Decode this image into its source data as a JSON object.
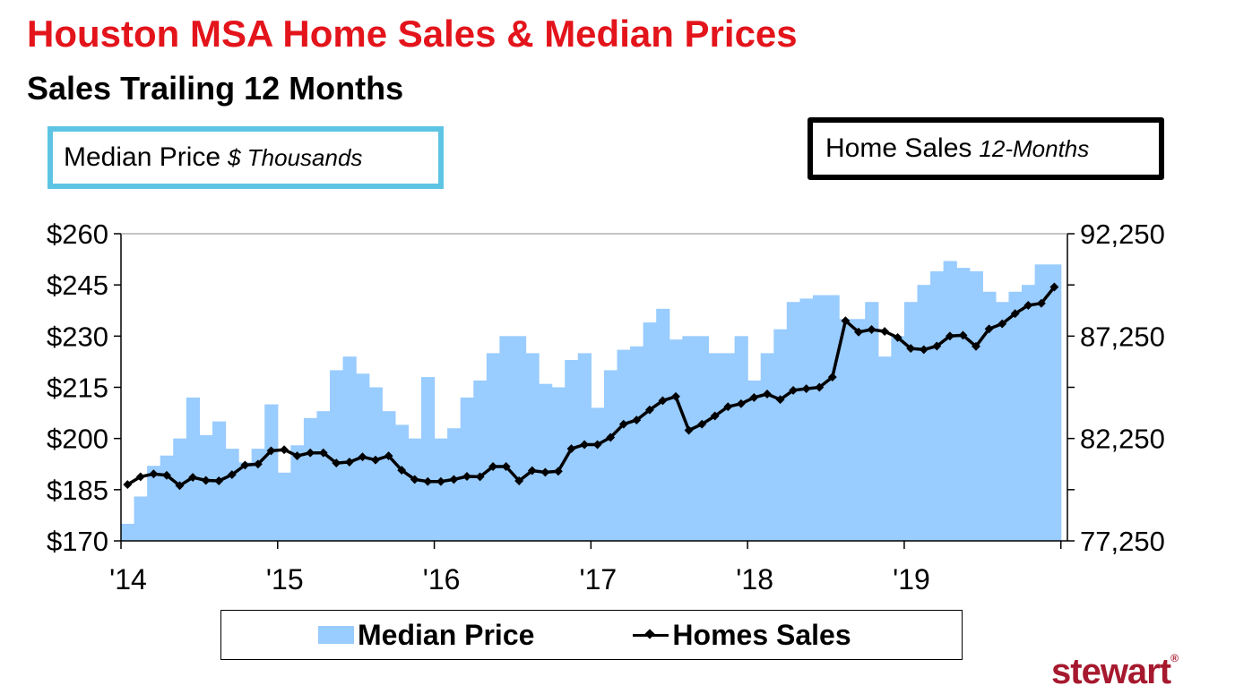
{
  "header": {
    "title": "Houston MSA Home Sales & Median Prices",
    "subtitle": "Sales Trailing 12 Months"
  },
  "axis_boxes": {
    "left_label": "Median Price",
    "left_unit": "$ Thousands",
    "right_label": "Home Sales",
    "right_unit": "12-Months"
  },
  "legend": {
    "median_price": "Median Price",
    "home_sales": "Homes Sales"
  },
  "logo": {
    "text": "stewart",
    "mark": "®"
  },
  "colors": {
    "title": "#e3141b",
    "bars": "#99ccff",
    "line": "#000000",
    "left_box_border": "#5ec4e4",
    "logo": "#a6192e"
  },
  "chart_data": {
    "type": "bar+line",
    "x_tick_labels": [
      "'14",
      "'15",
      "'16",
      "'17",
      "'18",
      "'19"
    ],
    "y_left": {
      "min": 170,
      "max": 260,
      "ticks": [
        "$170",
        "$185",
        "$200",
        "$215",
        "$230",
        "$245",
        "$260"
      ]
    },
    "y_right": {
      "min": 77250,
      "max": 92250,
      "ticks": [
        "77,250",
        "82,250",
        "87,250",
        "92,250"
      ]
    },
    "series": [
      {
        "name": "Median Price",
        "kind": "bar",
        "axis": "left",
        "values": [
          175,
          183,
          192,
          195,
          200,
          212,
          201,
          205,
          197,
          193,
          197,
          210,
          190,
          198,
          206,
          208,
          220,
          224,
          219,
          215,
          208,
          204,
          200,
          218,
          200,
          203,
          212,
          217,
          225,
          230,
          230,
          225,
          216,
          215,
          223,
          225,
          209,
          220,
          226,
          227,
          234,
          238,
          229,
          230,
          230,
          225,
          225,
          230,
          217,
          225,
          232,
          240,
          241,
          242,
          242,
          235,
          235,
          240,
          224,
          230,
          240,
          245,
          249,
          252,
          250,
          249,
          243,
          240,
          243,
          245,
          251,
          251
        ]
      },
      {
        "name": "Homes Sales",
        "kind": "line",
        "axis": "right",
        "values": [
          80000,
          80380,
          80520,
          80450,
          79950,
          80350,
          80200,
          80180,
          80480,
          80950,
          81000,
          81650,
          81700,
          81400,
          81550,
          81550,
          81050,
          81100,
          81350,
          81200,
          81400,
          80700,
          80250,
          80150,
          80150,
          80250,
          80400,
          80380,
          80880,
          80880,
          80180,
          80680,
          80600,
          80650,
          81750,
          81950,
          81950,
          82300,
          82950,
          83150,
          83650,
          84100,
          84300,
          82650,
          82950,
          83350,
          83800,
          83950,
          84250,
          84420,
          84150,
          84600,
          84680,
          84750,
          85250,
          88000,
          87450,
          87570,
          87480,
          87180,
          86650,
          86590,
          86760,
          87250,
          87290,
          86750,
          87600,
          87850,
          88350,
          88750,
          88850,
          89650
        ]
      }
    ],
    "grid": false,
    "legend_position": "bottom"
  }
}
